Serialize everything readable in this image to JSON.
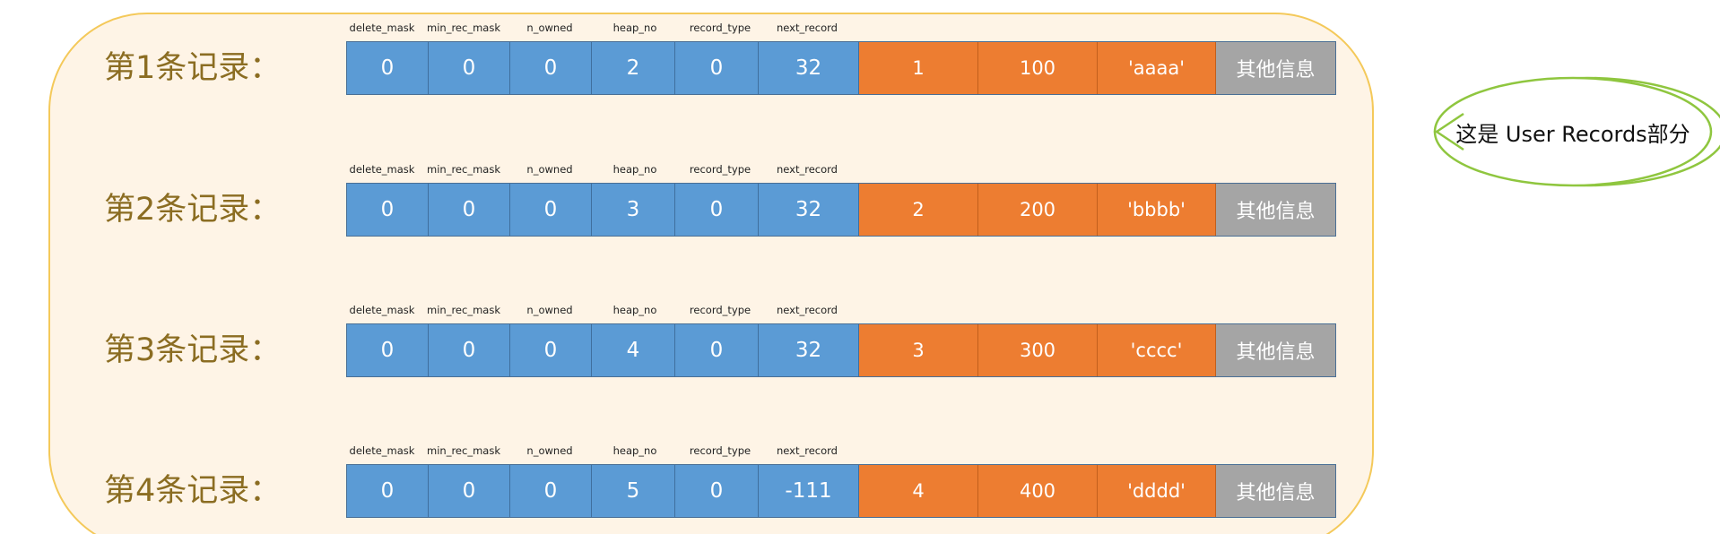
{
  "field_names": [
    "delete_mask",
    "min_rec_mask",
    "n_owned",
    "heap_no",
    "record_type",
    "next_record"
  ],
  "records": [
    {
      "label": "第1条记录：",
      "header": [
        "0",
        "0",
        "0",
        "2",
        "0",
        "32"
      ],
      "data": [
        "1",
        "100",
        "'aaaa'"
      ],
      "other": "其他信息"
    },
    {
      "label": "第2条记录：",
      "header": [
        "0",
        "0",
        "0",
        "3",
        "0",
        "32"
      ],
      "data": [
        "2",
        "200",
        "'bbbb'"
      ],
      "other": "其他信息"
    },
    {
      "label": "第3条记录：",
      "header": [
        "0",
        "0",
        "0",
        "4",
        "0",
        "32"
      ],
      "data": [
        "3",
        "300",
        "'cccc'"
      ],
      "other": "其他信息"
    },
    {
      "label": "第4条记录：",
      "header": [
        "0",
        "0",
        "0",
        "5",
        "0",
        "-111"
      ],
      "data": [
        "4",
        "400",
        "'dddd'"
      ],
      "other": "其他信息"
    }
  ],
  "callout": {
    "text": "这是 User Records部分"
  },
  "colors": {
    "header_cell": "#5b9bd5",
    "data_cell": "#ed7d31",
    "other_cell": "#a5a5a5",
    "panel_fill": "#fef4e6",
    "panel_border": "#f4c95a",
    "callout_border": "#8fc63f",
    "label_text": "#8b6d22"
  }
}
